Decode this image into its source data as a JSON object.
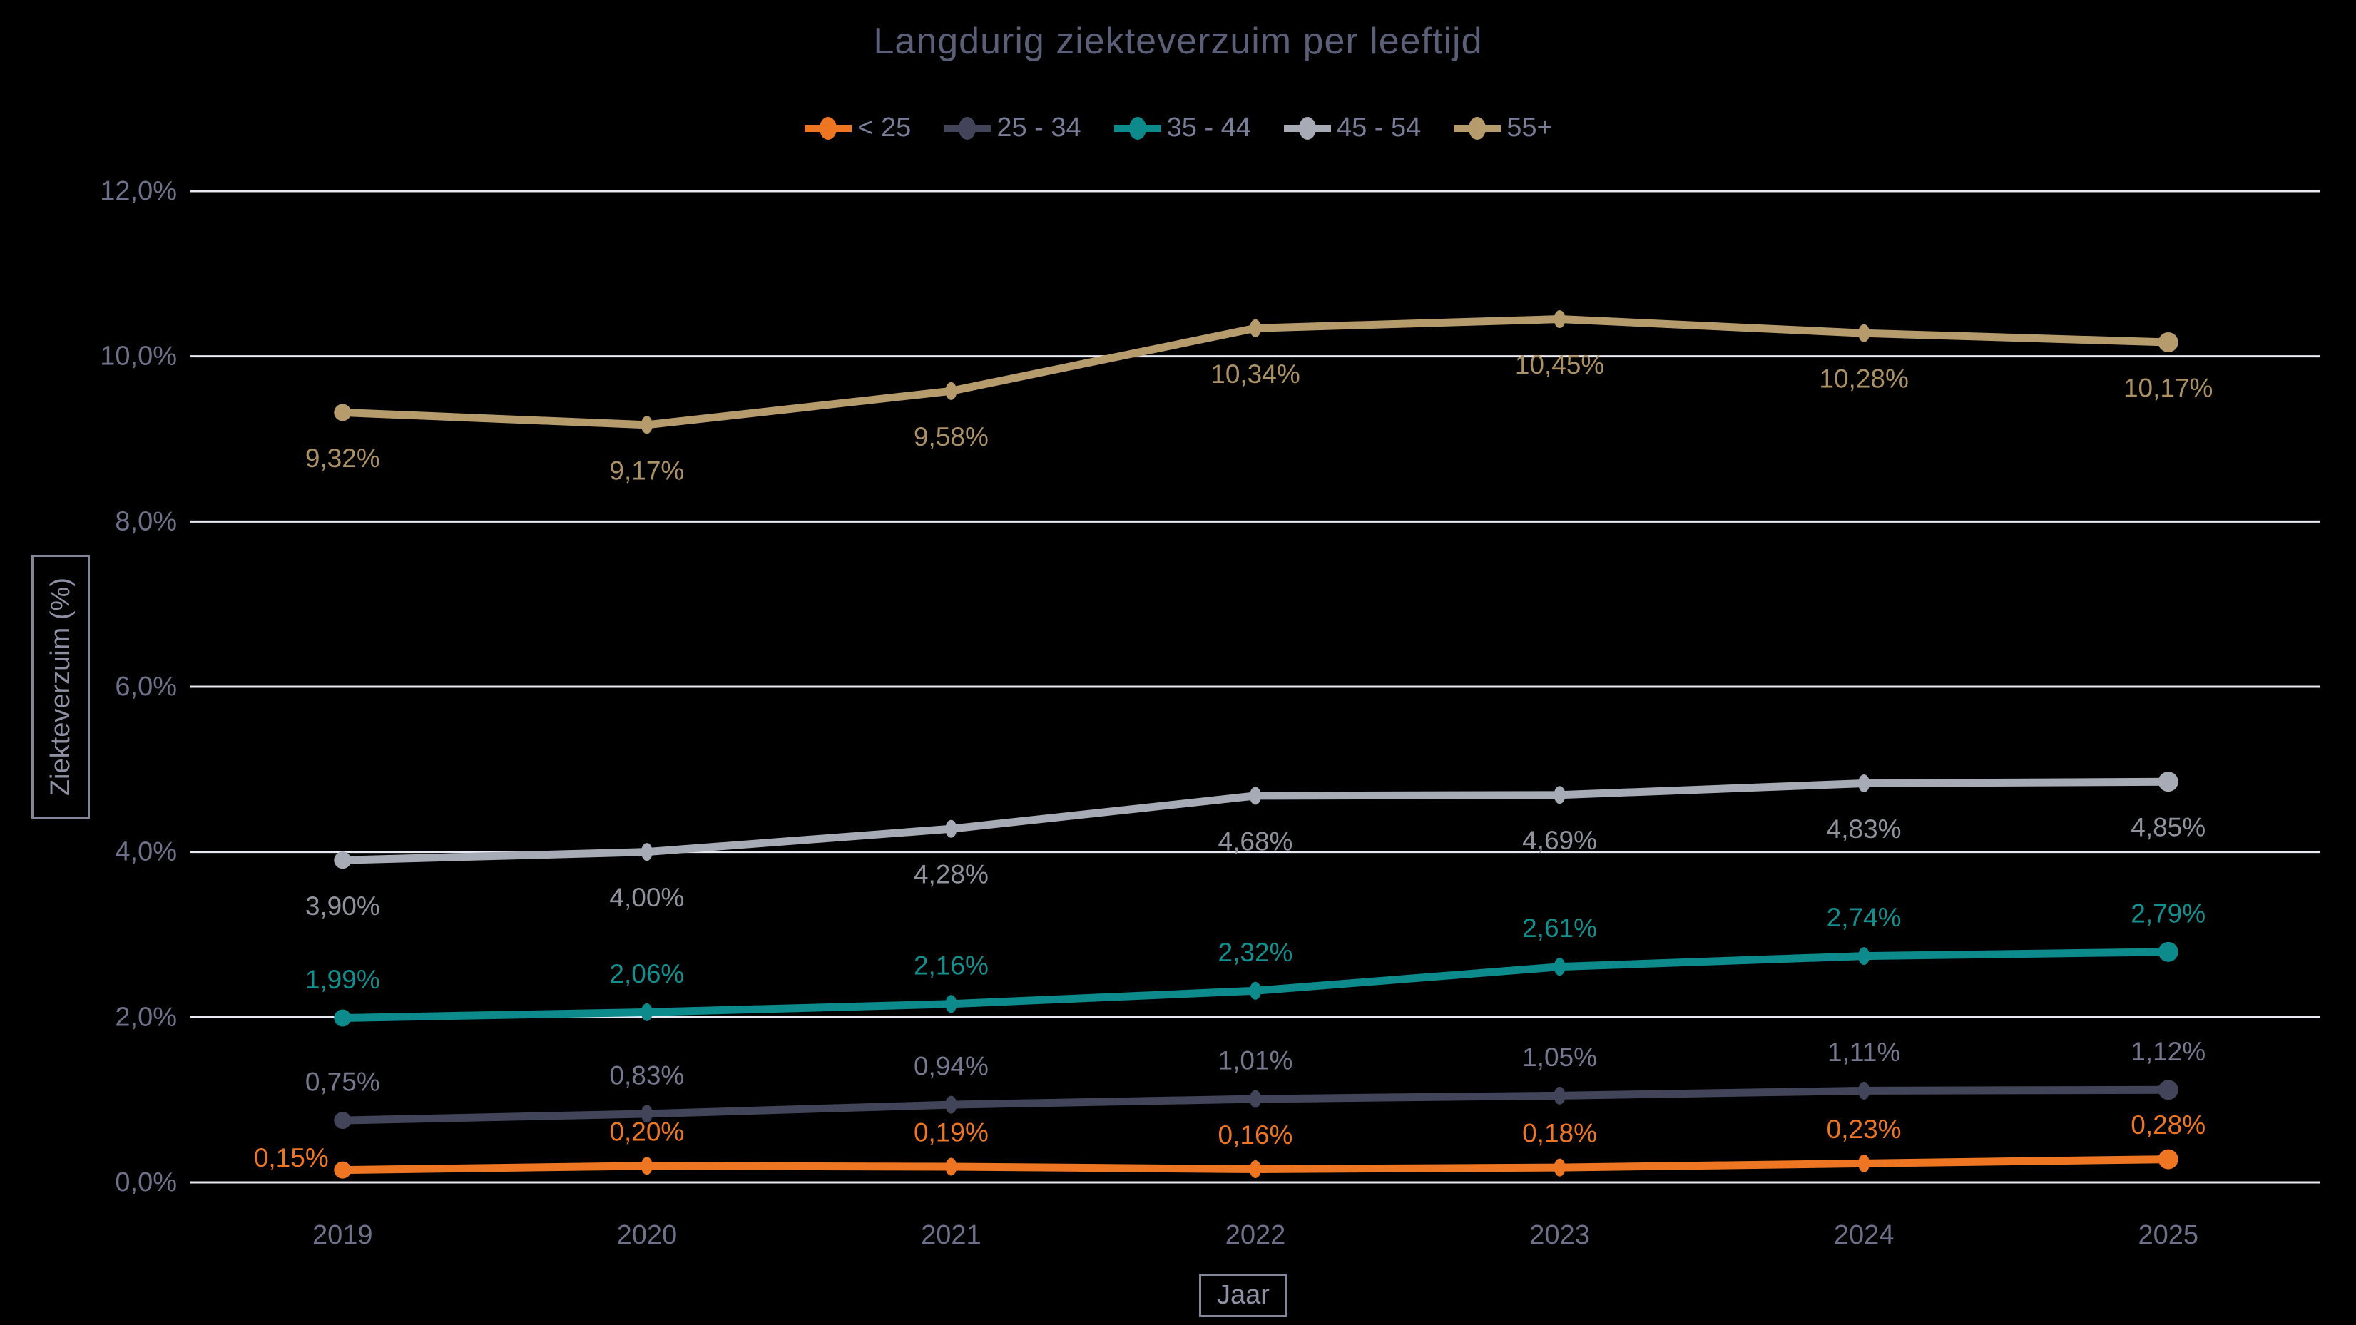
{
  "title": "Langdurig ziekteverzuim per leeftijd",
  "colors": {
    "background": "#000000",
    "gridline": "#E9E9F2",
    "title": "#5C5F78",
    "axis_tick": "#6E7189",
    "legend_text": "#7A7D97",
    "axis_box_border": "#83869A",
    "axis_box_text": "#8E91A4"
  },
  "chart_data": {
    "type": "line",
    "title": "Langdurig ziekteverzuim per leeftijd",
    "xlabel": "Jaar",
    "ylabel": "Ziekteverzuim (%)",
    "categories": [
      "2019",
      "2020",
      "2021",
      "2022",
      "2023",
      "2024",
      "2025"
    ],
    "y_ticks": [
      "12,0%",
      "10,0%",
      "8,0%",
      "6,0%",
      "4,0%",
      "2,0%",
      "0,0%"
    ],
    "ylim": [
      0,
      12
    ],
    "grid": "horizontal-only",
    "legend_position": "top-center",
    "series": [
      {
        "name": "< 25",
        "color": "#EE7623",
        "label_color": "#EE7623",
        "values": [
          0.15,
          0.2,
          0.19,
          0.16,
          0.18,
          0.23,
          0.28
        ],
        "labels": [
          "0,15%",
          "0,20%",
          "0,19%",
          "0,16%",
          "0,18%",
          "0,23%",
          "0,28%"
        ],
        "label_position": "above",
        "label_dy": -48,
        "label_overrides": {
          "0": {
            "dx": -72,
            "dy": -17
          }
        }
      },
      {
        "name": "25 - 34",
        "color": "#42455A",
        "label_color": "#75788F",
        "values": [
          0.75,
          0.83,
          0.94,
          1.01,
          1.05,
          1.11,
          1.12
        ],
        "labels": [
          "0,75%",
          "0,83%",
          "0,94%",
          "1,01%",
          "1,05%",
          "1,11%",
          "1,12%"
        ],
        "label_position": "above",
        "label_dy": -54
      },
      {
        "name": "35 - 44",
        "color": "#0C8A8C",
        "label_color": "#11908F",
        "values": [
          1.99,
          2.06,
          2.16,
          2.32,
          2.61,
          2.74,
          2.79
        ],
        "labels": [
          "1,99%",
          "2,06%",
          "2,16%",
          "2,32%",
          "2,61%",
          "2,74%",
          "2,79%"
        ],
        "label_position": "above",
        "label_dy": -54
      },
      {
        "name": "45 - 54",
        "color": "#A7ABB6",
        "label_color": "#90939E",
        "values": [
          3.9,
          4.0,
          4.28,
          4.68,
          4.69,
          4.83,
          4.85
        ],
        "labels": [
          "3,90%",
          "4,00%",
          "4,28%",
          "4,68%",
          "4,69%",
          "4,83%",
          "4,85%"
        ],
        "label_position": "below",
        "label_dy": 64
      },
      {
        "name": "55+",
        "color": "#B69B6C",
        "label_color": "#AB9164",
        "values": [
          9.32,
          9.17,
          9.58,
          10.34,
          10.45,
          10.28,
          10.17
        ],
        "labels": [
          "9,32%",
          "9,17%",
          "9,58%",
          "10,34%",
          "10,45%",
          "10,28%",
          "10,17%"
        ],
        "label_position": "below",
        "label_dy": 64
      }
    ]
  }
}
